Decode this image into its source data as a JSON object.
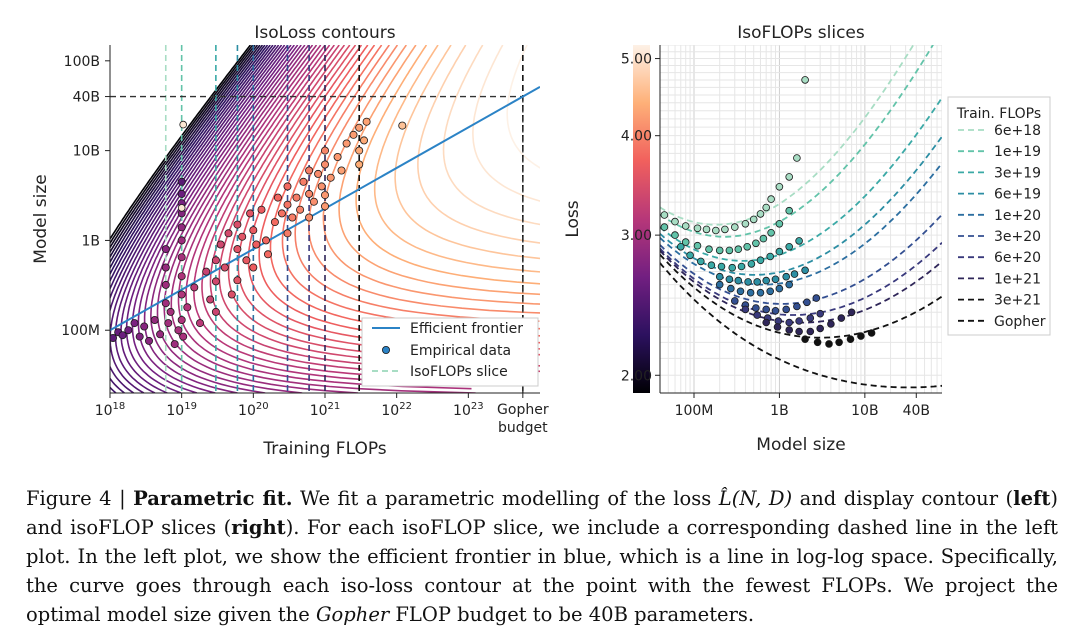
{
  "chart_data": [
    {
      "type": "contour",
      "title": "IsoLoss contours",
      "xlabel": "Training FLOPs",
      "ylabel": "Model size",
      "x_scale": "log",
      "y_scale": "log",
      "xlim": [
        1e+18,
        1e+24
      ],
      "ylim": [
        20000000,
        150000000000
      ],
      "x_ticks": [
        {
          "label": "10",
          "exp": "18",
          "value": 1e+18
        },
        {
          "label": "10",
          "exp": "19",
          "value": 1e+19
        },
        {
          "label": "10",
          "exp": "20",
          "value": 1e+20
        },
        {
          "label": "10",
          "exp": "21",
          "value": 1e+21
        },
        {
          "label": "10",
          "exp": "22",
          "value": 1e+22
        },
        {
          "label": "10",
          "exp": "23",
          "value": 1e+23
        }
      ],
      "gopher_tick": {
        "line1": "Gopher",
        "line2": "budget",
        "value": 5.76e+23
      },
      "y_ticks": [
        {
          "label": "100M",
          "value": 100000000
        },
        {
          "label": "1B",
          "value": 1000000000
        },
        {
          "label": "10B",
          "value": 10000000000
        },
        {
          "label": "40B",
          "value": 40000000000
        },
        {
          "label": "100B",
          "value": 100000000000
        }
      ],
      "gopher_budget_flops": 5.76e+23,
      "projected_model_size": 40000000000,
      "frontier": {
        "name": "Efficient frontier",
        "color": "#2b83c6",
        "x": [
          1e+18,
          5.76e+23
        ],
        "y": [
          100000000,
          40000000000
        ]
      },
      "isoflop_slices": [
        6e+18,
        1e+19,
        3e+19,
        6e+19,
        1e+20,
        3e+20,
        6e+20,
        1e+21,
        3e+21,
        5.76e+23
      ],
      "empirical_points": [
        [
          1.1e+18,
          82000000.0
        ],
        [
          1.3e+18,
          95000000.0
        ],
        [
          1.5e+18,
          88000000.0
        ],
        [
          1.8e+18,
          100000000.0
        ],
        [
          2.2e+18,
          120000000.0
        ],
        [
          2.6e+18,
          85000000.0
        ],
        [
          3e+18,
          110000000.0
        ],
        [
          3.5e+18,
          76000000.0
        ],
        [
          4.2e+18,
          130000000.0
        ],
        [
          5e+18,
          90000000.0
        ],
        [
          6e+18,
          200000000.0
        ],
        [
          6e+18,
          320000000.0
        ],
        [
          6e+18,
          500000000.0
        ],
        [
          6e+18,
          800000000.0
        ],
        [
          6.5e+18,
          120000000.0
        ],
        [
          7e+18,
          160000000.0
        ],
        [
          8e+18,
          70000000.0
        ],
        [
          9e+18,
          100000000.0
        ],
        [
          1e+19,
          130000000.0
        ],
        [
          1e+19,
          250000000.0
        ],
        [
          1e+19,
          400000000.0
        ],
        [
          1e+19,
          650000000.0
        ],
        [
          1e+19,
          1000000000.0
        ],
        [
          1e+19,
          1400000000.0
        ],
        [
          1e+19,
          2000000000.0
        ],
        [
          1e+19,
          2600000000.0
        ],
        [
          1e+19,
          3300000000.0
        ],
        [
          1e+19,
          4500000000.0
        ],
        [
          1.05e+19,
          85000000.0
        ],
        [
          1.2e+19,
          180000000.0
        ],
        [
          1.5e+19,
          300000000.0
        ],
        [
          1.8e+19,
          120000000.0
        ],
        [
          2.2e+19,
          450000000.0
        ],
        [
          2.5e+19,
          220000000.0
        ],
        [
          3e+19,
          600000000.0
        ],
        [
          3e+19,
          350000000.0
        ],
        [
          3e+19,
          160000000.0
        ],
        [
          3.5e+19,
          900000000.0
        ],
        [
          4e+19,
          500000000.0
        ],
        [
          4.5e+19,
          1200000000.0
        ],
        [
          5e+19,
          250000000.0
        ],
        [
          6e+19,
          800000000.0
        ],
        [
          6e+19,
          1500000000.0
        ],
        [
          6e+19,
          360000000.0
        ],
        [
          7e+19,
          1100000000.0
        ],
        [
          8e+19,
          600000000.0
        ],
        [
          9e+19,
          2000000000.0
        ],
        [
          1e+20,
          1300000000.0
        ],
        [
          1e+20,
          500000000.0
        ],
        [
          1.1e+20,
          900000000.0
        ],
        [
          1.3e+20,
          2200000000.0
        ],
        [
          1.5e+20,
          1000000000.0
        ],
        [
          1.6e+20,
          700000000.0
        ],
        [
          2e+20,
          1600000000.0
        ],
        [
          2.2e+20,
          3000000000.0
        ],
        [
          2.5e+20,
          2000000000.0
        ],
        [
          3e+20,
          2500000000.0
        ],
        [
          3e+20,
          1200000000.0
        ],
        [
          3e+20,
          4000000000.0
        ],
        [
          3.5e+20,
          1800000000.0
        ],
        [
          4e+20,
          3000000000.0
        ],
        [
          4.5e+20,
          2200000000.0
        ],
        [
          5e+20,
          4500000000.0
        ],
        [
          6e+20,
          3300000000.0
        ],
        [
          6e+20,
          6000000000.0
        ],
        [
          6e+20,
          1800000000.0
        ],
        [
          7e+20,
          2700000000.0
        ],
        [
          8e+20,
          5500000000.0
        ],
        [
          9e+20,
          4000000000.0
        ],
        [
          1e+21,
          2400000000.0
        ],
        [
          1e+21,
          3200000000.0
        ],
        [
          1e+21,
          7000000000.0
        ],
        [
          1e+21,
          10000000000.0
        ],
        [
          1.2e+21,
          5000000000.0
        ],
        [
          1.5e+21,
          8500000000.0
        ],
        [
          1.7e+21,
          6000000000.0
        ],
        [
          2e+21,
          12000000000.0
        ],
        [
          2.5e+21,
          15000000000.0
        ],
        [
          3e+21,
          10000000000.0
        ],
        [
          3e+21,
          18000000000.0
        ],
        [
          3e+21,
          7000000000.0
        ],
        [
          3.5e+21,
          13000000000.0
        ],
        [
          3.8e+21,
          21000000000.0
        ],
        [
          1.2e+22,
          19000000000.0
        ]
      ],
      "highlight_points": [
        [
          1.05e+19,
          19500000000.0
        ],
        [
          1e+19,
          2300000000.0
        ]
      ],
      "legend": [
        {
          "label": "Efficient frontier",
          "kind": "line",
          "color": "#2b83c6"
        },
        {
          "label": "Empirical data",
          "kind": "marker",
          "color": "#2b83c6"
        },
        {
          "label": "IsoFLOPs slice",
          "kind": "dashed",
          "color": "#a8ddc4"
        }
      ]
    },
    {
      "type": "line",
      "title": "IsoFLOPs slices",
      "xlabel": "Model size",
      "ylabel": "Loss",
      "x_scale": "log",
      "y_scale": "log",
      "xlim": [
        40000000,
        80000000000
      ],
      "ylim": [
        1.9,
        5.2
      ],
      "x_ticks": [
        {
          "label": "100M",
          "value": 100000000
        },
        {
          "label": "1B",
          "value": 1000000000
        },
        {
          "label": "10B",
          "value": 10000000000
        },
        {
          "label": "40B",
          "value": 40000000000
        }
      ],
      "y_ticks": [
        {
          "label": "2.00",
          "value": 2.0
        },
        {
          "label": "3.00",
          "value": 3.0
        },
        {
          "label": "4.00",
          "value": 4.0
        },
        {
          "label": "5.00",
          "value": 5.0
        }
      ],
      "legend_title": "Train. FLOPs",
      "series": [
        {
          "name": "6e+18",
          "flops": 6e+18,
          "color": "#a8ddc4",
          "points": [
            [
              45000000.0,
              3.18
            ],
            [
              60000000.0,
              3.12
            ],
            [
              80000000.0,
              3.08
            ],
            [
              110000000.0,
              3.06
            ],
            [
              140000000.0,
              3.05
            ],
            [
              180000000.0,
              3.04
            ],
            [
              230000000.0,
              3.05
            ],
            [
              300000000.0,
              3.07
            ],
            [
              400000000.0,
              3.1
            ],
            [
              500000000.0,
              3.14
            ],
            [
              600000000.0,
              3.19
            ],
            [
              700000000.0,
              3.25
            ],
            [
              800000000.0,
              3.33
            ],
            [
              1000000000.0,
              3.45
            ],
            [
              1300000000.0,
              3.55
            ],
            [
              1600000000.0,
              3.75
            ],
            [
              2000000000.0,
              4.7
            ]
          ]
        },
        {
          "name": "1e+19",
          "flops": 1e+19,
          "color": "#62c3a9",
          "points": [
            [
              45000000.0,
              3.07
            ],
            [
              60000000.0,
              3.0
            ],
            [
              80000000.0,
              2.94
            ],
            [
              110000000.0,
              2.91
            ],
            [
              150000000.0,
              2.88
            ],
            [
              200000000.0,
              2.87
            ],
            [
              260000000.0,
              2.87
            ],
            [
              330000000.0,
              2.88
            ],
            [
              420000000.0,
              2.9
            ],
            [
              530000000.0,
              2.93
            ],
            [
              650000000.0,
              2.97
            ],
            [
              800000000.0,
              3.02
            ],
            [
              1000000000.0,
              3.1
            ],
            [
              1300000000.0,
              3.22
            ]
          ]
        },
        {
          "name": "3e+19",
          "flops": 3e+19,
          "color": "#3aa9a6",
          "points": [
            [
              70000000.0,
              2.9
            ],
            [
              90000000.0,
              2.83
            ],
            [
              120000000.0,
              2.78
            ],
            [
              160000000.0,
              2.75
            ],
            [
              210000000.0,
              2.74
            ],
            [
              280000000.0,
              2.73
            ],
            [
              360000000.0,
              2.74
            ],
            [
              470000000.0,
              2.76
            ],
            [
              600000000.0,
              2.79
            ],
            [
              780000000.0,
              2.82
            ],
            [
              1000000000.0,
              2.86
            ],
            [
              1300000000.0,
              2.9
            ],
            [
              1700000000.0,
              2.95
            ]
          ]
        },
        {
          "name": "6e+19",
          "flops": 6e+19,
          "color": "#2c8ea3",
          "points": [
            [
              200000000.0,
              2.66
            ],
            [
              260000000.0,
              2.64
            ],
            [
              330000000.0,
              2.63
            ],
            [
              430000000.0,
              2.62
            ],
            [
              550000000.0,
              2.62
            ],
            [
              700000000.0,
              2.63
            ],
            [
              900000000.0,
              2.64
            ],
            [
              1200000000.0,
              2.66
            ],
            [
              1500000000.0,
              2.68
            ],
            [
              2000000000.0,
              2.71
            ]
          ]
        },
        {
          "name": "1e+20",
          "flops": 1e+20,
          "color": "#2c6ea0",
          "points": [
            [
              200000000.0,
              2.6
            ],
            [
              270000000.0,
              2.57
            ],
            [
              350000000.0,
              2.55
            ],
            [
              460000000.0,
              2.54
            ],
            [
              600000000.0,
              2.54
            ],
            [
              780000000.0,
              2.55
            ],
            [
              1000000000.0,
              2.57
            ],
            [
              1300000000.0,
              2.6
            ]
          ]
        },
        {
          "name": "3e+20",
          "flops": 3e+20,
          "color": "#334f91",
          "points": [
            [
              300000000.0,
              2.48
            ],
            [
              400000000.0,
              2.45
            ],
            [
              530000000.0,
              2.43
            ],
            [
              700000000.0,
              2.42
            ],
            [
              900000000.0,
              2.41
            ],
            [
              1200000000.0,
              2.42
            ],
            [
              1600000000.0,
              2.44
            ],
            [
              2100000000.0,
              2.47
            ],
            [
              2700000000.0,
              2.5
            ]
          ]
        },
        {
          "name": "6e+20",
          "flops": 6e+20,
          "color": "#39397c",
          "points": [
            [
              400000000.0,
              2.42
            ],
            [
              550000000.0,
              2.38
            ],
            [
              730000000.0,
              2.36
            ],
            [
              970000000.0,
              2.34
            ],
            [
              1300000000.0,
              2.33
            ],
            [
              1700000000.0,
              2.34
            ],
            [
              2300000000.0,
              2.36
            ],
            [
              3000000000.0,
              2.39
            ]
          ]
        },
        {
          "name": "1e+21",
          "flops": 1e+21,
          "color": "#2e2558",
          "points": [
            [
              700000000.0,
              2.33
            ],
            [
              950000000.0,
              2.3
            ],
            [
              1300000000.0,
              2.28
            ],
            [
              1700000000.0,
              2.27
            ],
            [
              2300000000.0,
              2.27
            ],
            [
              3000000000.0,
              2.29
            ],
            [
              4000000000.0,
              2.32
            ],
            [
              5300000000.0,
              2.36
            ],
            [
              7000000000.0,
              2.4
            ]
          ]
        },
        {
          "name": "3e+21",
          "flops": 3e+21,
          "color": "#111111",
          "points": [
            [
              2000000000.0,
              2.22
            ],
            [
              2800000000.0,
              2.2
            ],
            [
              3800000000.0,
              2.19
            ],
            [
              5000000000.0,
              2.2
            ],
            [
              6800000000.0,
              2.22
            ],
            [
              9000000000.0,
              2.24
            ],
            [
              12000000000.0,
              2.26
            ]
          ]
        },
        {
          "name": "Gopher",
          "flops": 5.76e+23,
          "color": "#111111",
          "points": []
        }
      ]
    }
  ],
  "colorbar": {
    "stops": [
      "#000004",
      "#2c115f",
      "#721f81",
      "#b73779",
      "#f1605d",
      "#feb078",
      "#fdf1e6"
    ]
  },
  "caption": {
    "prefix": "Figure 4 | ",
    "bold_title": "Parametric fit.",
    "text1": " We fit a parametric modelling of the loss ",
    "math": "L̂(N, D)",
    "text2": " and display contour (",
    "bold_left": "left",
    "text3": ") and isoFLOP slices (",
    "bold_right": "right",
    "text4": "). For each isoFLOP slice, we include a corresponding dashed line in the left plot. In the left plot, we show the efficient frontier in blue, which is a line in log-log space. Specifically, the curve goes through each iso-loss contour at the point with the fewest FLOPs. We project the optimal model size given the ",
    "italic_gopher": "Gopher",
    "text5": " FLOP budget to be 40B parameters."
  }
}
